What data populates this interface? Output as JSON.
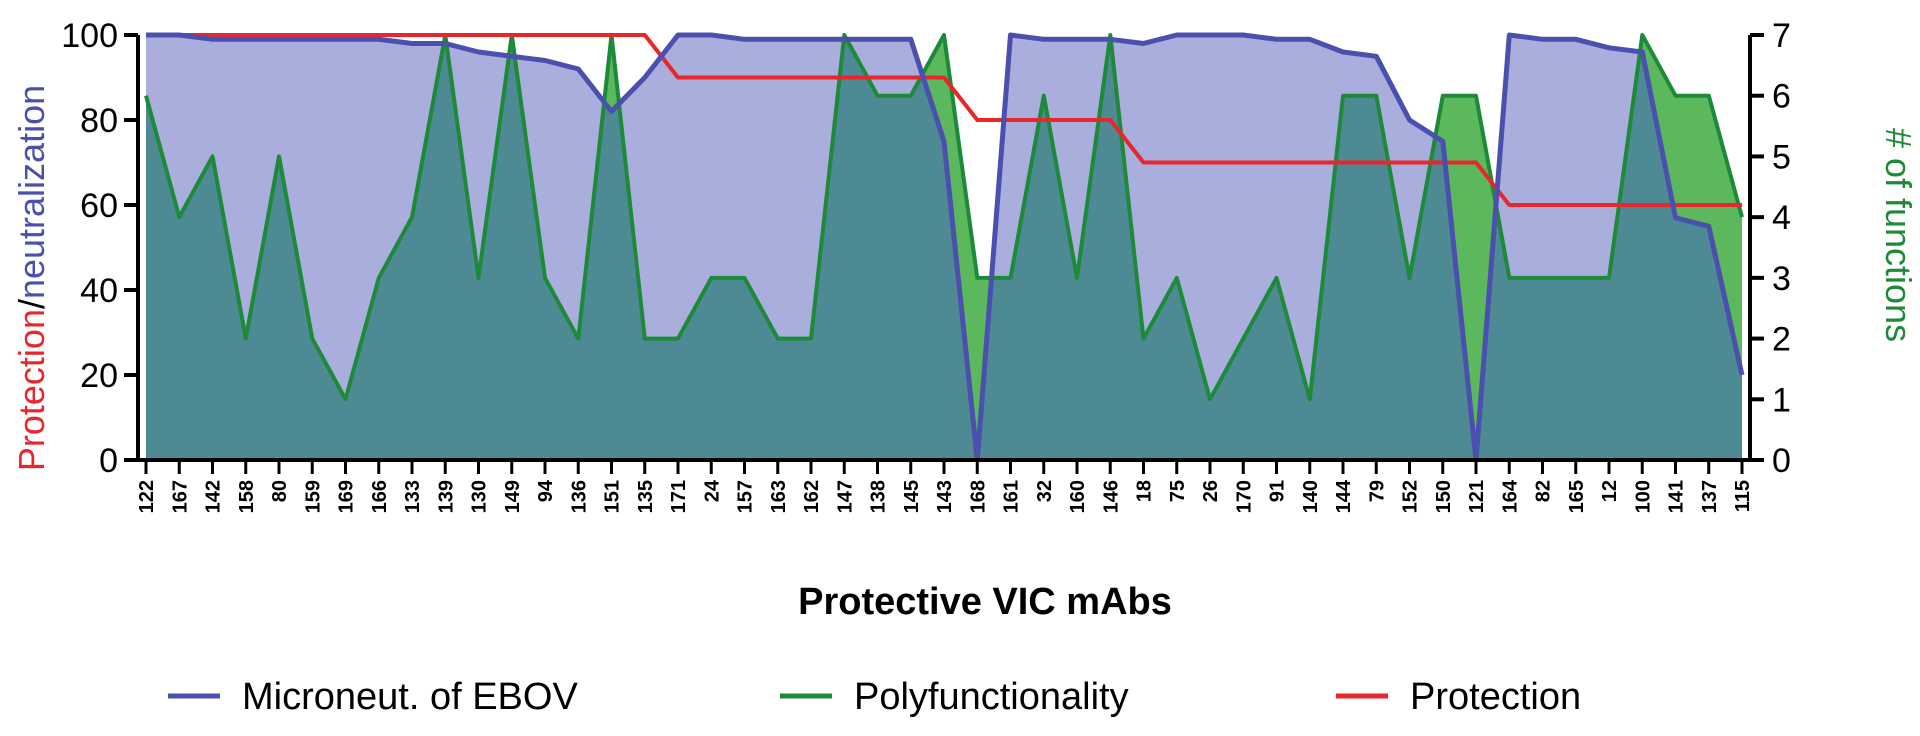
{
  "chart_data": {
    "type": "line",
    "xlabel": "Protective VIC mAbs",
    "ylabel_left_part1": "Protection",
    "ylabel_left_sep": "/",
    "ylabel_left_part2": "neutralization",
    "ylabel_right": "# of functions",
    "ylim_left": [
      0,
      100
    ],
    "ylim_right": [
      0,
      7
    ],
    "yticks_left": [
      0,
      20,
      40,
      60,
      80,
      100
    ],
    "yticks_right": [
      0,
      1,
      2,
      3,
      4,
      5,
      6,
      7
    ],
    "categories": [
      "122",
      "167",
      "142",
      "158",
      "80",
      "159",
      "169",
      "166",
      "133",
      "139",
      "130",
      "149",
      "94",
      "136",
      "151",
      "135",
      "171",
      "24",
      "157",
      "163",
      "162",
      "147",
      "138",
      "145",
      "143",
      "168",
      "161",
      "32",
      "160",
      "146",
      "18",
      "75",
      "26",
      "170",
      "91",
      "140",
      "144",
      "79",
      "152",
      "150",
      "121",
      "164",
      "82",
      "165",
      "12",
      "100",
      "141",
      "137",
      "115"
    ],
    "series": [
      {
        "name": "Microneut. of EBOV",
        "axis": "left",
        "color": "#4b4fae",
        "fill": "#aaaedc",
        "values": [
          100,
          100,
          99,
          99,
          99,
          99,
          99,
          99,
          98,
          98,
          96,
          95,
          94,
          92,
          82,
          90,
          100,
          100,
          99,
          99,
          99,
          99,
          99,
          99,
          75,
          0,
          100,
          99,
          99,
          99,
          98,
          100,
          100,
          100,
          99,
          99,
          96,
          95,
          80,
          75,
          0,
          100,
          99,
          99,
          97,
          96,
          57,
          55,
          20
        ]
      },
      {
        "name": "Polyfunctionality",
        "axis": "right",
        "color": "#1d8a3a",
        "fill": "#5cb85c",
        "values": [
          6,
          4,
          5,
          2,
          5,
          2,
          1,
          3,
          4,
          7,
          3,
          7,
          3,
          2,
          7,
          2,
          2,
          3,
          3,
          2,
          2,
          7,
          6,
          6,
          7,
          3,
          3,
          6,
          3,
          7,
          2,
          3,
          1,
          2,
          3,
          1,
          6,
          6,
          3,
          6,
          6,
          3,
          3,
          3,
          3,
          7,
          6,
          6,
          4
        ]
      },
      {
        "name": "Protection",
        "axis": "left",
        "color": "#e8262c",
        "values": [
          100,
          100,
          100,
          100,
          100,
          100,
          100,
          100,
          100,
          100,
          100,
          100,
          100,
          100,
          100,
          100,
          90,
          90,
          90,
          90,
          90,
          90,
          90,
          90,
          90,
          80,
          80,
          80,
          80,
          80,
          70,
          70,
          70,
          70,
          70,
          70,
          70,
          70,
          70,
          70,
          70,
          60,
          60,
          60,
          60,
          60,
          60,
          60,
          60
        ]
      }
    ],
    "legend": [
      {
        "label": "Microneut. of EBOV",
        "color": "#4b4fae"
      },
      {
        "label": "Polyfunctionality",
        "color": "#1d8a3a"
      },
      {
        "label": "Protection",
        "color": "#e8262c"
      }
    ],
    "colors": {
      "overlap": "#4d8a94",
      "left_label_protection": "#e8262c",
      "left_label_neutralization": "#4b4fae",
      "right_label": "#1d8a3a"
    }
  }
}
